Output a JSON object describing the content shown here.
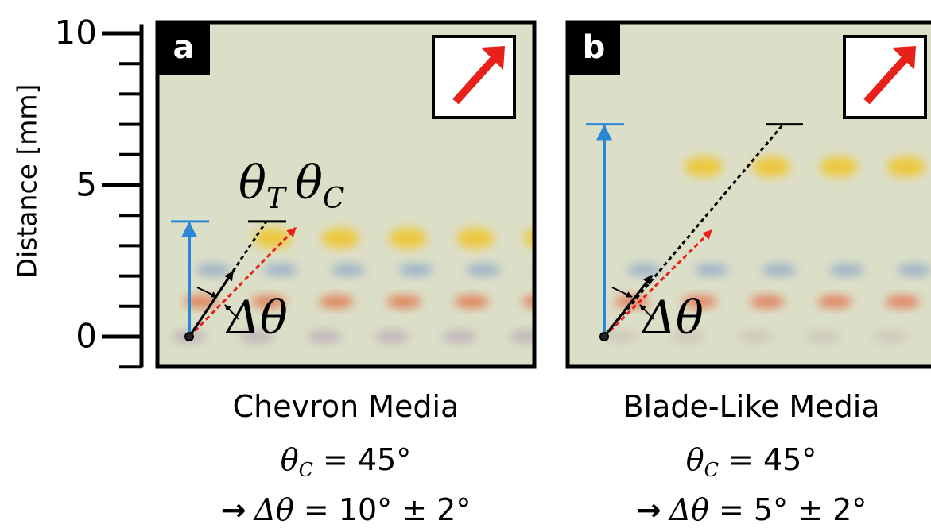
{
  "axis": {
    "label": "Distance [mm]",
    "ylim": [
      -1,
      10.3
    ],
    "ticks": [
      0,
      5,
      10
    ],
    "minor_ticks": [
      -1,
      1,
      2,
      3,
      4,
      6,
      7,
      8,
      9
    ]
  },
  "panels": [
    {
      "label": "a",
      "distance_mm": 3.8,
      "angle_labels": {
        "theta": "θ",
        "t_sub": "T",
        "theta2": "θ",
        "c_sub": "C"
      },
      "delta_label": "Δθ",
      "caption": {
        "media": "Chevron Media",
        "angle_symbol": "θ",
        "angle_sub": "C",
        "angle_rest": " = 45°",
        "arrow": "→",
        "delta": "Δθ",
        "delta_rest": " = 10° ± 2°"
      }
    },
    {
      "label": "b",
      "distance_mm": 7.0,
      "delta_label": "Δθ",
      "caption": {
        "media": "Blade-Like Media",
        "angle_symbol": "θ",
        "angle_sub": "C",
        "angle_rest": " = 45°",
        "arrow": "→",
        "delta": "Δθ",
        "delta_rest": " = 5° ± 2°"
      }
    }
  ]
}
